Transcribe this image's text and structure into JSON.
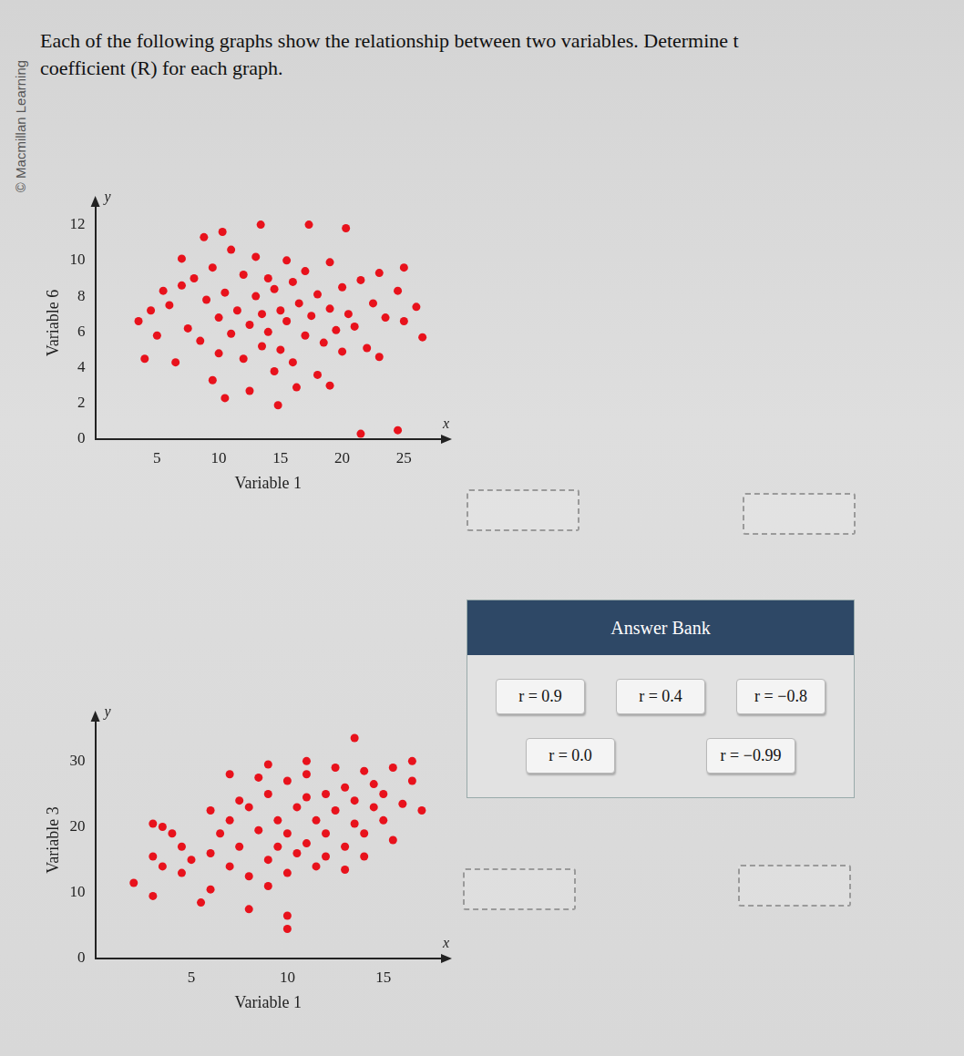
{
  "watermark": "© Macmillan Learning",
  "question": [
    "Each of the following graphs show the relationship between two variables. Determine t",
    "coefficient (R) for each graph."
  ],
  "chart_data": [
    {
      "type": "scatter",
      "x_label": "Variable 1",
      "y_label": "Variable 6",
      "annotations": [
        "x",
        "y"
      ],
      "color": "#e8121c",
      "marker": "circle",
      "grid": false,
      "xlim": [
        0,
        28
      ],
      "ylim": [
        0,
        13
      ],
      "xticks": [
        5,
        10,
        15,
        20,
        25
      ],
      "yticks": [
        0,
        2,
        4,
        6,
        8,
        10,
        12
      ],
      "x": [
        6,
        7,
        7.5,
        8,
        8.5,
        9,
        9.5,
        10,
        10,
        10.5,
        11,
        11,
        11.5,
        12,
        12,
        12.5,
        13,
        13,
        13.5,
        13.5,
        14,
        14,
        14.5,
        14.5,
        15,
        15,
        15.5,
        15.5,
        16,
        16,
        16.5,
        17,
        17,
        17.5,
        18,
        18,
        18.5,
        19,
        19,
        19.5,
        20,
        20,
        20.5,
        21,
        21.5,
        22,
        22.5,
        23,
        23.5,
        24.5,
        25,
        26,
        26.5,
        4,
        5,
        5.5,
        6.5,
        3.5,
        4.5,
        8.8,
        10.3,
        13.4,
        17.3,
        20.3,
        10.5,
        12.5,
        14.8,
        16.3,
        19,
        21.5,
        24.5,
        9.5,
        23,
        25,
        7
      ],
      "values": [
        7.5,
        8.6,
        6.2,
        9,
        5.5,
        7.8,
        9.6,
        6.8,
        4.8,
        8.2,
        10.6,
        5.9,
        7.2,
        9.2,
        4.5,
        6.4,
        8,
        10.2,
        5.2,
        7,
        6,
        9,
        3.8,
        8.4,
        7.2,
        5,
        10,
        6.6,
        8.8,
        4.3,
        7.6,
        5.8,
        9.4,
        6.9,
        8.1,
        3.6,
        5.4,
        7.3,
        9.9,
        6.1,
        8.5,
        4.9,
        7,
        6.3,
        8.9,
        5.1,
        7.6,
        4.6,
        6.8,
        8.3,
        6.6,
        7.4,
        5.7,
        4.5,
        5.8,
        8.3,
        4.3,
        6.6,
        7.2,
        11.3,
        11.6,
        12,
        12,
        11.8,
        2.3,
        2.7,
        1.9,
        2.9,
        3,
        0.3,
        0.5,
        3.3,
        9.3,
        9.6,
        10.1
      ]
    },
    {
      "type": "scatter",
      "x_label": "Variable 1",
      "y_label": "Variable 3",
      "annotations": [
        "x",
        "y"
      ],
      "color": "#e8121c",
      "marker": "circle",
      "grid": false,
      "xlim": [
        0,
        18
      ],
      "ylim": [
        0,
        36
      ],
      "xticks": [
        5,
        10,
        15
      ],
      "yticks": [
        0,
        10,
        20,
        30
      ],
      "x": [
        6,
        6.5,
        7,
        7,
        7.5,
        8,
        8,
        8.5,
        9,
        9,
        9.5,
        9.5,
        10,
        10,
        10,
        10.5,
        11,
        11,
        11.5,
        11.5,
        12,
        12,
        12.5,
        12.5,
        13,
        13,
        13.5,
        13.5,
        14,
        14,
        14.5,
        14.5,
        15,
        15,
        15.5,
        15.5,
        16,
        16.5,
        8.5,
        7.5,
        6,
        10.5,
        12,
        13,
        9,
        11,
        14,
        3,
        3.5,
        4,
        4.5,
        3,
        3.5,
        2,
        3,
        5.5,
        8,
        10,
        10,
        13.5,
        11,
        9,
        7,
        16.5,
        17,
        5,
        4.5,
        6
      ],
      "values": [
        16,
        19,
        14,
        21,
        17,
        23,
        12.5,
        19.5,
        15,
        25,
        21,
        17,
        27,
        19,
        13,
        23,
        17.5,
        28,
        21,
        14,
        25,
        19,
        22.5,
        29,
        17,
        26,
        20.5,
        24,
        28.5,
        19,
        23,
        26.5,
        21,
        25,
        29,
        18,
        23.5,
        27,
        27.5,
        24,
        22.5,
        16,
        15.5,
        13.5,
        11,
        24.5,
        15.5,
        20.5,
        20,
        19,
        17,
        15.5,
        14,
        11.5,
        9.5,
        8.5,
        7.5,
        4.5,
        6.5,
        33.5,
        30,
        29.5,
        28,
        30,
        22.5,
        15,
        13,
        10.5
      ]
    }
  ],
  "answer_bank": {
    "title": "Answer Bank",
    "items": [
      "r = 0.9",
      "r = 0.4",
      "r = −0.8",
      "r = 0.0",
      "r = −0.99"
    ]
  }
}
